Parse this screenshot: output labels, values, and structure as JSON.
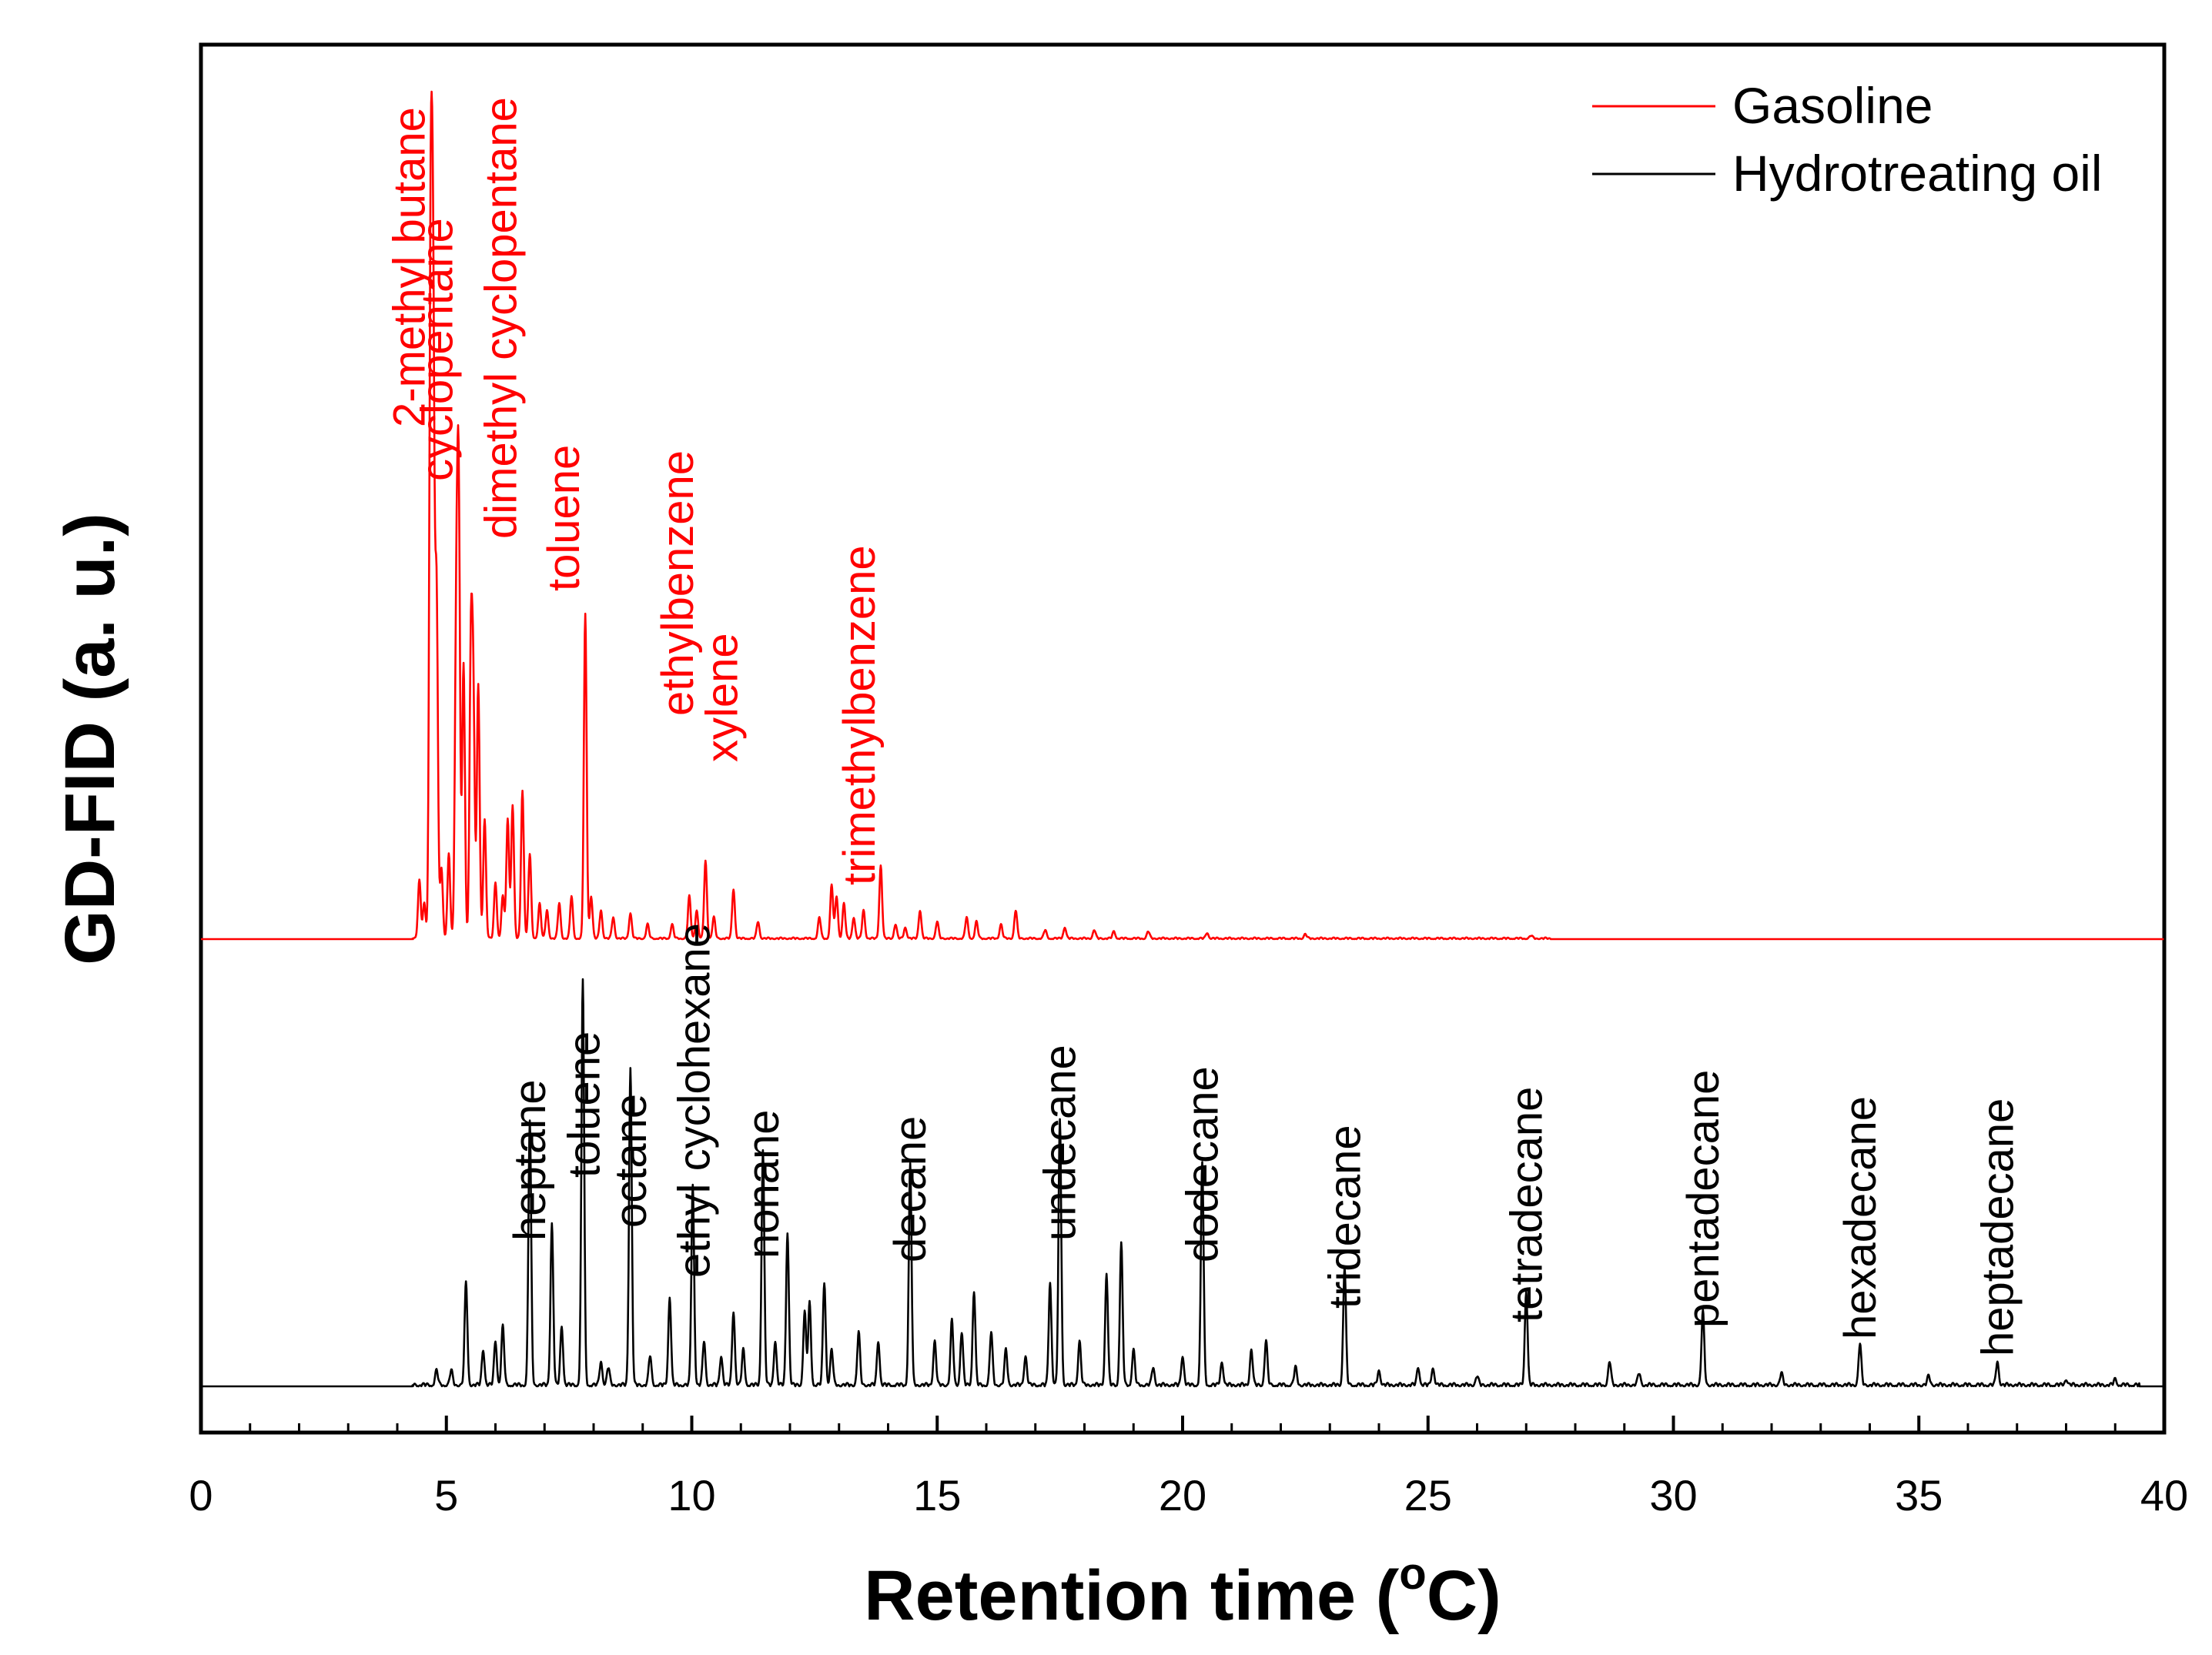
{
  "chart_data": {
    "type": "line",
    "xlabel_main": "Retention time (",
    "xlabel_sup": "o",
    "xlabel_tail": "C)",
    "ylabel": "GD-FID (a. u.)",
    "xlim": [
      0,
      40
    ],
    "x_ticks": [
      "0",
      "5",
      "10",
      "15",
      "20",
      "25",
      "30",
      "35",
      "40"
    ],
    "legend": [
      {
        "name": "Gasoline",
        "color": "#ff0000"
      },
      {
        "name": "Hydrotreating oil",
        "color": "#000000"
      }
    ],
    "series": [
      {
        "name": "Gasoline",
        "color": "#ff0000",
        "baseline": 0,
        "peaks": [
          {
            "x": 4.45,
            "h": 0.42
          },
          {
            "x": 4.55,
            "h": 0.25
          },
          {
            "x": 4.68,
            "h": 4.72
          },
          {
            "x": 4.73,
            "h": 4.18
          },
          {
            "x": 4.8,
            "h": 2.45
          },
          {
            "x": 4.9,
            "h": 0.5
          },
          {
            "x": 5.05,
            "h": 0.6
          },
          {
            "x": 5.2,
            "h": 2.05
          },
          {
            "x": 5.25,
            "h": 3.1
          },
          {
            "x": 5.35,
            "h": 1.95
          },
          {
            "x": 5.5,
            "h": 2.0
          },
          {
            "x": 5.55,
            "h": 1.6
          },
          {
            "x": 5.65,
            "h": 1.8
          },
          {
            "x": 5.78,
            "h": 0.85
          },
          {
            "x": 6.0,
            "h": 0.4
          },
          {
            "x": 6.15,
            "h": 0.3
          },
          {
            "x": 6.25,
            "h": 0.85
          },
          {
            "x": 6.35,
            "h": 0.95
          },
          {
            "x": 6.55,
            "h": 1.05
          },
          {
            "x": 6.7,
            "h": 0.6
          },
          {
            "x": 6.9,
            "h": 0.25
          },
          {
            "x": 7.05,
            "h": 0.2
          },
          {
            "x": 7.3,
            "h": 0.25
          },
          {
            "x": 7.55,
            "h": 0.3
          },
          {
            "x": 7.83,
            "h": 2.3
          },
          {
            "x": 7.95,
            "h": 0.3
          },
          {
            "x": 8.15,
            "h": 0.2
          },
          {
            "x": 8.4,
            "h": 0.15
          },
          {
            "x": 8.75,
            "h": 0.18
          },
          {
            "x": 9.1,
            "h": 0.1
          },
          {
            "x": 9.6,
            "h": 0.1
          },
          {
            "x": 9.95,
            "h": 0.3
          },
          {
            "x": 10.1,
            "h": 0.2
          },
          {
            "x": 10.28,
            "h": 0.55
          },
          {
            "x": 10.45,
            "h": 0.15
          },
          {
            "x": 10.85,
            "h": 0.35
          },
          {
            "x": 11.35,
            "h": 0.12
          },
          {
            "x": 12.6,
            "h": 0.15
          },
          {
            "x": 12.85,
            "h": 0.38
          },
          {
            "x": 12.95,
            "h": 0.3
          },
          {
            "x": 13.1,
            "h": 0.25
          },
          {
            "x": 13.3,
            "h": 0.15
          },
          {
            "x": 13.5,
            "h": 0.2
          },
          {
            "x": 13.85,
            "h": 0.52
          },
          {
            "x": 14.15,
            "h": 0.1
          },
          {
            "x": 14.35,
            "h": 0.08
          },
          {
            "x": 14.65,
            "h": 0.2
          },
          {
            "x": 15.0,
            "h": 0.12
          },
          {
            "x": 15.6,
            "h": 0.15
          },
          {
            "x": 15.8,
            "h": 0.12
          },
          {
            "x": 16.3,
            "h": 0.1
          },
          {
            "x": 16.6,
            "h": 0.2
          },
          {
            "x": 17.2,
            "h": 0.06
          },
          {
            "x": 17.6,
            "h": 0.08
          },
          {
            "x": 18.2,
            "h": 0.06
          },
          {
            "x": 18.6,
            "h": 0.05
          },
          {
            "x": 19.3,
            "h": 0.05
          },
          {
            "x": 20.5,
            "h": 0.04
          },
          {
            "x": 22.5,
            "h": 0.03
          },
          {
            "x": 27.1,
            "h": 0.02
          }
        ]
      },
      {
        "name": "Hydrotreating oil",
        "color": "#000000",
        "baseline": 0,
        "peaks": [
          {
            "x": 4.8,
            "h": 0.05
          },
          {
            "x": 5.1,
            "h": 0.05
          },
          {
            "x": 5.4,
            "h": 0.35
          },
          {
            "x": 5.75,
            "h": 0.12
          },
          {
            "x": 6.0,
            "h": 0.15
          },
          {
            "x": 6.15,
            "h": 0.2
          },
          {
            "x": 6.7,
            "h": 0.9
          },
          {
            "x": 7.15,
            "h": 0.55
          },
          {
            "x": 7.35,
            "h": 0.2
          },
          {
            "x": 7.78,
            "h": 1.38
          },
          {
            "x": 8.15,
            "h": 0.08
          },
          {
            "x": 8.3,
            "h": 0.06
          },
          {
            "x": 8.75,
            "h": 1.08
          },
          {
            "x": 9.15,
            "h": 0.1
          },
          {
            "x": 9.55,
            "h": 0.3
          },
          {
            "x": 10.02,
            "h": 0.68
          },
          {
            "x": 10.25,
            "h": 0.15
          },
          {
            "x": 10.6,
            "h": 0.1
          },
          {
            "x": 10.85,
            "h": 0.25
          },
          {
            "x": 11.05,
            "h": 0.12
          },
          {
            "x": 11.45,
            "h": 0.8
          },
          {
            "x": 11.7,
            "h": 0.15
          },
          {
            "x": 11.95,
            "h": 0.52
          },
          {
            "x": 12.3,
            "h": 0.25
          },
          {
            "x": 12.4,
            "h": 0.28
          },
          {
            "x": 12.7,
            "h": 0.35
          },
          {
            "x": 12.85,
            "h": 0.12
          },
          {
            "x": 13.4,
            "h": 0.18
          },
          {
            "x": 13.8,
            "h": 0.15
          },
          {
            "x": 14.45,
            "h": 0.75
          },
          {
            "x": 14.95,
            "h": 0.15
          },
          {
            "x": 15.3,
            "h": 0.22
          },
          {
            "x": 15.5,
            "h": 0.18
          },
          {
            "x": 15.75,
            "h": 0.32
          },
          {
            "x": 16.1,
            "h": 0.18
          },
          {
            "x": 16.4,
            "h": 0.12
          },
          {
            "x": 16.8,
            "h": 0.1
          },
          {
            "x": 17.3,
            "h": 0.35
          },
          {
            "x": 17.5,
            "h": 0.9
          },
          {
            "x": 17.9,
            "h": 0.15
          },
          {
            "x": 18.45,
            "h": 0.38
          },
          {
            "x": 18.75,
            "h": 0.48
          },
          {
            "x": 19.0,
            "h": 0.12
          },
          {
            "x": 19.4,
            "h": 0.06
          },
          {
            "x": 20.0,
            "h": 0.1
          },
          {
            "x": 20.4,
            "h": 0.76
          },
          {
            "x": 20.8,
            "h": 0.08
          },
          {
            "x": 21.4,
            "h": 0.12
          },
          {
            "x": 21.7,
            "h": 0.15
          },
          {
            "x": 22.3,
            "h": 0.06
          },
          {
            "x": 23.3,
            "h": 0.4
          },
          {
            "x": 24.0,
            "h": 0.05
          },
          {
            "x": 24.8,
            "h": 0.06
          },
          {
            "x": 25.1,
            "h": 0.06
          },
          {
            "x": 26.0,
            "h": 0.03
          },
          {
            "x": 27.0,
            "h": 0.32
          },
          {
            "x": 28.7,
            "h": 0.08
          },
          {
            "x": 29.3,
            "h": 0.04
          },
          {
            "x": 30.6,
            "h": 0.25
          },
          {
            "x": 32.2,
            "h": 0.04
          },
          {
            "x": 33.8,
            "h": 0.14
          },
          {
            "x": 35.2,
            "h": 0.03
          },
          {
            "x": 36.6,
            "h": 0.08
          },
          {
            "x": 38.0,
            "h": 0.02
          },
          {
            "x": 39.0,
            "h": 0.02
          }
        ]
      }
    ],
    "annotations_gasoline": [
      {
        "text": "2-methyl butane",
        "x": 4.68
      },
      {
        "text": "cyclopentane",
        "x": 5.25
      },
      {
        "text": "dimethyl cyclopentane",
        "x": 6.55
      },
      {
        "text": "toluene",
        "x": 7.83
      },
      {
        "text": "ethylbenzene",
        "x": 10.15
      },
      {
        "text": "xylene",
        "x": 11.05
      },
      {
        "text": "trimethylbenzene",
        "x": 13.85
      }
    ],
    "annotations_hydrotreating": [
      {
        "text": "heptane",
        "x": 6.7
      },
      {
        "text": "toluene",
        "x": 7.8
      },
      {
        "text": "octane",
        "x": 8.75
      },
      {
        "text": "ethyl cyclohexane",
        "x": 10.05
      },
      {
        "text": "nonane",
        "x": 11.45
      },
      {
        "text": "decane",
        "x": 14.45
      },
      {
        "text": "undecane",
        "x": 17.5
      },
      {
        "text": "dodecane",
        "x": 20.4
      },
      {
        "text": "tridecane",
        "x": 23.3
      },
      {
        "text": "tetradecane",
        "x": 27.0
      },
      {
        "text": "pentadecane",
        "x": 30.6
      },
      {
        "text": "hexadecane",
        "x": 33.8
      },
      {
        "text": "heptadecane",
        "x": 36.6
      }
    ]
  }
}
